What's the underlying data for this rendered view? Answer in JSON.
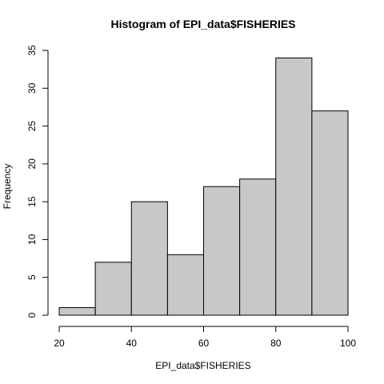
{
  "chart_data": {
    "type": "bar",
    "subtype": "histogram",
    "title": "Histogram of EPI_data$FISHERIES",
    "xlabel": "EPI_data$FISHERIES",
    "ylabel": "Frequency",
    "bins": [
      {
        "start": 20,
        "end": 30,
        "count": 1
      },
      {
        "start": 30,
        "end": 40,
        "count": 7
      },
      {
        "start": 40,
        "end": 50,
        "count": 15
      },
      {
        "start": 50,
        "end": 60,
        "count": 8
      },
      {
        "start": 60,
        "end": 70,
        "count": 17
      },
      {
        "start": 70,
        "end": 80,
        "count": 18
      },
      {
        "start": 80,
        "end": 90,
        "count": 34
      },
      {
        "start": 90,
        "end": 100,
        "count": 27
      }
    ],
    "xlim": [
      20,
      100
    ],
    "ylim": [
      0,
      35
    ],
    "x_ticks": [
      20,
      40,
      60,
      80,
      100
    ],
    "y_ticks": [
      0,
      5,
      10,
      15,
      20,
      25,
      30,
      35
    ],
    "bar_color": "#c8c8c8",
    "grid": false,
    "legend": "none"
  }
}
